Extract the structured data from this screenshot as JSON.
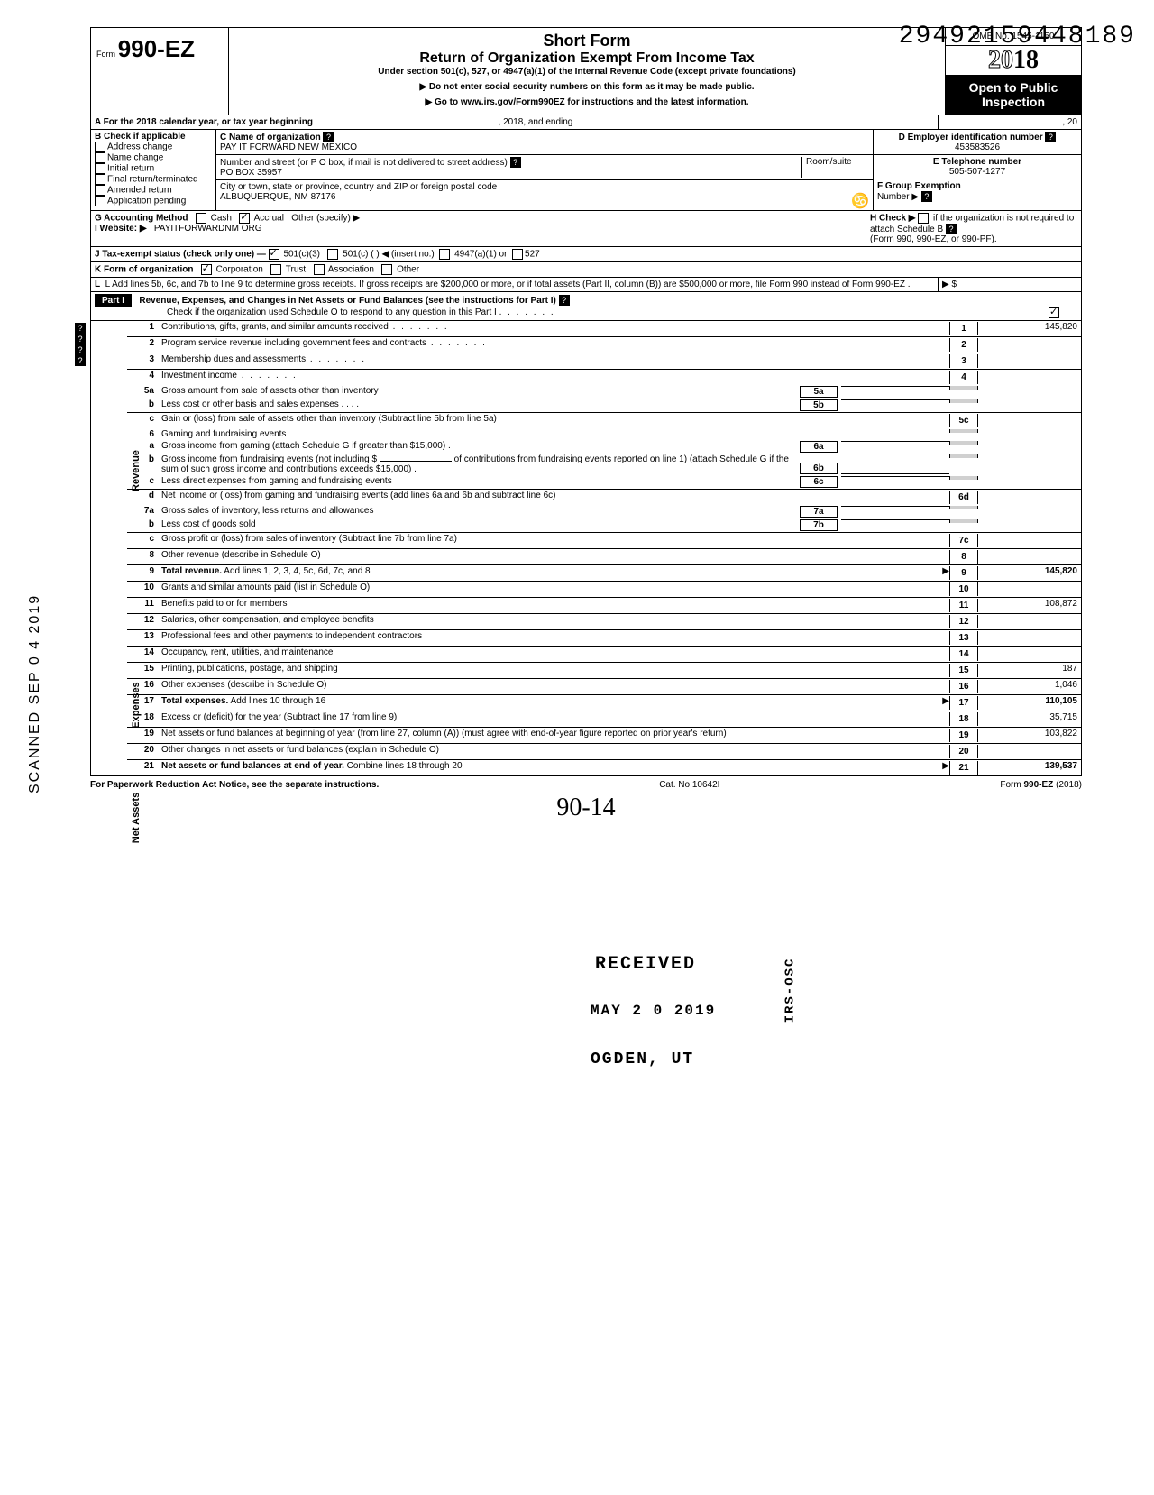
{
  "doc_id": "29492159448189",
  "scanned_date": "SCANNED  SEP 0 4 2019",
  "form": {
    "form_word": "Form",
    "form_number": "990-EZ",
    "short_title": "Short Form",
    "long_title": "Return of Organization Exempt From Income Tax",
    "under": "Under section 501(c), 527, or 4947(a)(1) of the Internal Revenue Code (except private foundations)",
    "warn1": "▶ Do not enter social security numbers on this form as it may be made public.",
    "warn2": "▶ Go to www.irs.gov/Form990EZ for instructions and the latest information.",
    "dept1": "Department of the Treasury",
    "dept2": "Internal Revenue Service",
    "omb": "OMB No. 1545-1150",
    "year_prefix": "20",
    "year_suffix": "18",
    "open": "Open to Public Inspection"
  },
  "line_a": "A  For the 2018 calendar year, or tax year beginning",
  "line_a_mid": ", 2018, and ending",
  "line_a_end": ", 20",
  "b_label": "B  Check if applicable",
  "b_opts": [
    "Address change",
    "Name change",
    "Initial return",
    "Final return/terminated",
    "Amended return",
    "Application pending"
  ],
  "c_label": "C  Name of organization",
  "c_value": "PAY IT FORWARD NEW MEXICO",
  "addr_label": "Number and street (or P O  box, if mail is not delivered to street address)",
  "addr_room": "Room/suite",
  "addr_value": "PO BOX 35957",
  "city_label": "City or town, state or province, country  and ZIP or foreign postal code",
  "city_value": "ALBUQUERQUE, NM  87176",
  "d_label": "D Employer identification number",
  "d_value": "453583526",
  "e_label": "E Telephone number",
  "e_value": "505-507-1277",
  "f_label": "F Group Exemption",
  "f_label2": "Number ▶",
  "g_label": "G  Accounting Method",
  "g_cash": "Cash",
  "g_accrual": "Accrual",
  "g_other": "Other (specify) ▶",
  "h_label": "H  Check ▶",
  "h_text": "if the organization is not required to attach Schedule B",
  "h_text2": "(Form 990, 990-EZ, or 990-PF).",
  "i_label": "I   Website: ▶",
  "i_value": "PAYITFORWARDNM ORG",
  "j_label": "J  Tax-exempt status (check only one) —",
  "j_501c3": "501(c)(3)",
  "j_501c": "501(c) (",
  "j_insert": ") ◀ (insert no.)",
  "j_4947": "4947(a)(1) or",
  "j_527": "527",
  "k_label": "K  Form of organization",
  "k_corp": "Corporation",
  "k_trust": "Trust",
  "k_assoc": "Association",
  "k_other": "Other",
  "l_text": "L  Add lines 5b, 6c, and 7b to line 9 to determine gross receipts. If gross receipts are $200,000 or more, or if total assets (Part II, column (B)) are $500,000 or more, file Form 990 instead of Form 990-EZ .",
  "l_arrow": "▶   $",
  "part1_label": "Part I",
  "part1_title": "Revenue, Expenses, and Changes in Net Assets or Fund Balances (see the instructions for Part I)",
  "part1_check": "Check if the organization used Schedule O to respond to any question in this Part I",
  "side_revenue": "Revenue",
  "side_expenses": "Expenses",
  "side_netassets": "Net Assets",
  "lines": {
    "1": {
      "n": "1",
      "t": "Contributions, gifts, grants, and similar amounts received",
      "amt": "145,820"
    },
    "2": {
      "n": "2",
      "t": "Program service revenue including government fees and contracts",
      "amt": ""
    },
    "3": {
      "n": "3",
      "t": "Membership dues and assessments",
      "amt": ""
    },
    "4": {
      "n": "4",
      "t": "Investment income",
      "amt": ""
    },
    "5a": {
      "n": "5a",
      "t": "Gross amount from sale of assets other than inventory",
      "sub": "5a"
    },
    "5b": {
      "n": "b",
      "t": "Less  cost or other basis and sales expenses .   .   .   .",
      "sub": "5b"
    },
    "5c": {
      "n": "c",
      "t": "Gain or (loss) from sale of assets other than inventory (Subtract line 5b from line 5a)",
      "box": "5c",
      "amt": ""
    },
    "6": {
      "n": "6",
      "t": "Gaming and fundraising events"
    },
    "6a": {
      "n": "a",
      "t": "Gross income from gaming (attach Schedule G if greater than $15,000) .",
      "sub": "6a"
    },
    "6b": {
      "n": "b",
      "t": "Gross income from fundraising events (not including  $",
      "t2": "of contributions from fundraising events reported on line 1) (attach Schedule G if the sum of such gross income and contributions exceeds $15,000) .",
      "sub": "6b"
    },
    "6c": {
      "n": "c",
      "t": "Less  direct expenses from gaming and fundraising events",
      "sub": "6c"
    },
    "6d": {
      "n": "d",
      "t": "Net income or (loss) from gaming and fundraising events (add lines 6a and 6b and subtract line 6c)",
      "box": "6d",
      "amt": ""
    },
    "7a": {
      "n": "7a",
      "t": "Gross sales of inventory, less returns and allowances",
      "sub": "7a"
    },
    "7b": {
      "n": "b",
      "t": "Less  cost of goods sold",
      "sub": "7b"
    },
    "7c": {
      "n": "c",
      "t": "Gross profit or (loss) from sales of inventory (Subtract line 7b from line 7a)",
      "box": "7c",
      "amt": ""
    },
    "8": {
      "n": "8",
      "t": "Other revenue (describe in Schedule O)",
      "box": "8",
      "amt": ""
    },
    "9": {
      "n": "9",
      "t": "Total revenue. Add lines 1, 2, 3, 4, 5c, 6d, 7c, and 8",
      "arrow": "▶",
      "box": "9",
      "amt": "145,820"
    },
    "10": {
      "n": "10",
      "t": "Grants and similar amounts paid (list in Schedule O)",
      "box": "10",
      "amt": ""
    },
    "11": {
      "n": "11",
      "t": "Benefits paid to or for members",
      "box": "11",
      "amt": "108,872"
    },
    "12": {
      "n": "12",
      "t": "Salaries, other compensation, and employee benefits",
      "box": "12",
      "amt": ""
    },
    "13": {
      "n": "13",
      "t": "Professional fees and other payments to independent contractors",
      "box": "13",
      "amt": ""
    },
    "14": {
      "n": "14",
      "t": "Occupancy, rent, utilities, and maintenance",
      "box": "14",
      "amt": ""
    },
    "15": {
      "n": "15",
      "t": "Printing, publications, postage, and shipping",
      "box": "15",
      "amt": "187"
    },
    "16": {
      "n": "16",
      "t": "Other expenses (describe in Schedule O)",
      "box": "16",
      "amt": "1,046"
    },
    "17": {
      "n": "17",
      "t": "Total expenses. Add lines 10 through 16",
      "arrow": "▶",
      "box": "17",
      "amt": "110,105"
    },
    "18": {
      "n": "18",
      "t": "Excess or (deficit) for the year (Subtract line 17 from line 9)",
      "box": "18",
      "amt": "35,715"
    },
    "19": {
      "n": "19",
      "t": "Net assets or fund balances at beginning of year (from line 27, column (A)) (must agree with end-of-year figure reported on prior year's return)",
      "box": "19",
      "amt": "103,822"
    },
    "20": {
      "n": "20",
      "t": "Other changes in net assets or fund balances (explain in Schedule O)",
      "box": "20",
      "amt": ""
    },
    "21": {
      "n": "21",
      "t": "Net assets or fund balances at end of year. Combine lines 18 through 20",
      "arrow": "▶",
      "box": "21",
      "amt": "139,537"
    }
  },
  "stamps": {
    "received": "RECEIVED",
    "date": "MAY 2 0 2019",
    "ogden": "OGDEN, UT",
    "irs": "IRS-OSC",
    "circ": "♋"
  },
  "footer": {
    "left": "For Paperwork Reduction Act Notice, see the separate instructions.",
    "mid": "Cat. No  10642I",
    "right_pre": "Form",
    "right_form": "990-EZ",
    "right_yr": "(2018)",
    "sig": "90-14"
  }
}
